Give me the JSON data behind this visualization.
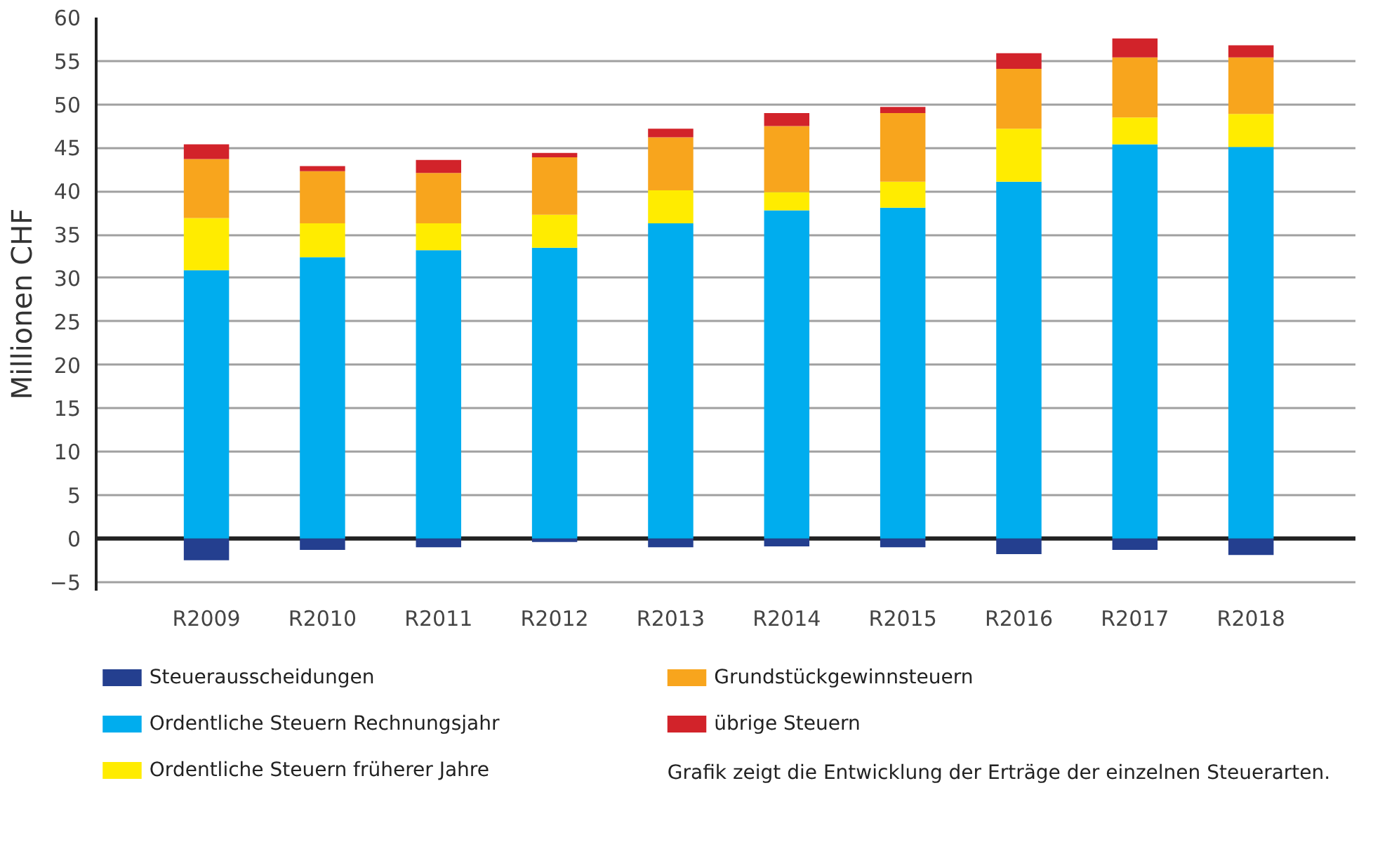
{
  "chart_data": {
    "type": "bar",
    "stacked": true,
    "ylabel": "Millionen CHF",
    "categories": [
      "R2009",
      "R2010",
      "R2011",
      "R2012",
      "R2013",
      "R2014",
      "R2015",
      "R2016",
      "R2017",
      "R2018"
    ],
    "series": [
      {
        "name": "Steuerausscheidungen",
        "color": "#243f8f",
        "values": [
          -2.5,
          -1.3,
          -1.0,
          -0.4,
          -1.0,
          -0.9,
          -1.0,
          -1.8,
          -1.3,
          -1.9
        ]
      },
      {
        "name": "Ordentliche Steuern Rechnungsjahr",
        "color": "#00adee",
        "values": [
          30.9,
          32.4,
          33.2,
          33.5,
          36.3,
          37.8,
          38.1,
          41.1,
          45.4,
          45.1
        ]
      },
      {
        "name": "Ordentliche Steuern früherer Jahre",
        "color": "#ffec00",
        "values": [
          6.0,
          3.9,
          3.1,
          3.8,
          3.8,
          2.1,
          3.0,
          6.1,
          3.1,
          3.8
        ]
      },
      {
        "name": "Grundstückgewinnsteuern",
        "color": "#f8a51d",
        "values": [
          6.8,
          6.0,
          5.8,
          6.6,
          6.1,
          7.6,
          7.9,
          6.9,
          6.9,
          6.5
        ]
      },
      {
        "name": "übrige Steuern",
        "color": "#d2232a",
        "values": [
          1.7,
          0.6,
          1.5,
          0.5,
          1.0,
          1.5,
          0.7,
          1.8,
          2.2,
          1.4
        ]
      }
    ],
    "ylim": [
      -6,
      60
    ],
    "yticks": [
      -5,
      0,
      5,
      10,
      15,
      20,
      25,
      30,
      35,
      40,
      45,
      50,
      55,
      60
    ],
    "grid": "y",
    "legend": "bottom",
    "annotations": [
      "Grafik zeigt die Entwicklung der Erträge der einzelnen Steuerarten."
    ]
  }
}
